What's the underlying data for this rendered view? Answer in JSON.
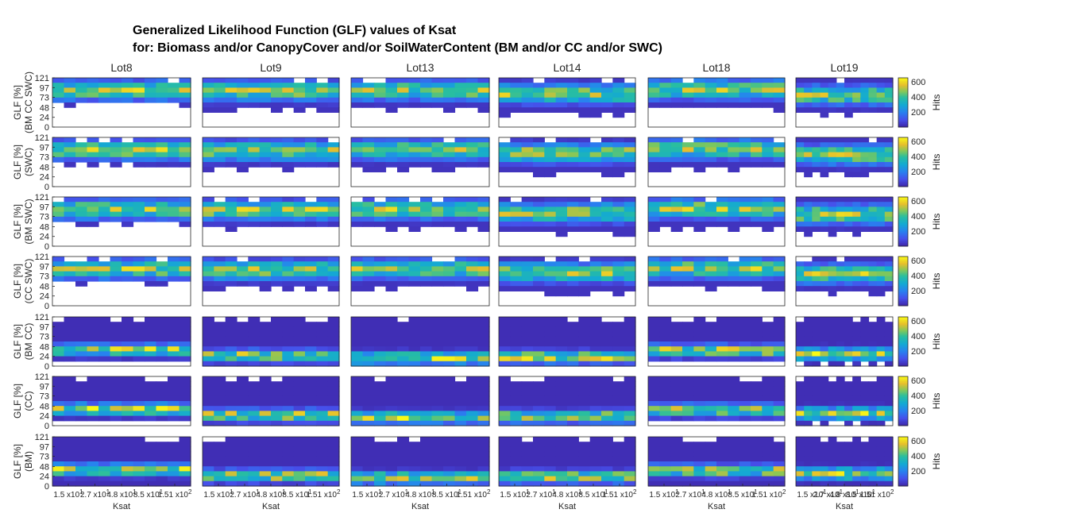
{
  "title": "Generalized Likelihood Function (GLF) values of Ksat",
  "subtitle": "for: Biomass and/or CanopyCover and/or SoilWaterContent (BM and/or CC and/or SWC)",
  "colors": {
    "low": "#3e26a8",
    "mid": "#1fb6c1",
    "high": "#f9fb15",
    "empty": "#ffffff"
  },
  "chart_data": {
    "type": "heatmap",
    "columns": [
      "Lot8",
      "Lot9",
      "Lot13",
      "Lot14",
      "Lot18",
      "Lot19"
    ],
    "rows": [
      {
        "ylabel_1": "GLF [%]",
        "ylabel_2": "(BM CC SWC)"
      },
      {
        "ylabel_1": "GLF [%]",
        "ylabel_2": "(SWC)"
      },
      {
        "ylabel_1": "GLF [%]",
        "ylabel_2": "(BM SWC)"
      },
      {
        "ylabel_1": "GLF [%]",
        "ylabel_2": "(CC SWC)"
      },
      {
        "ylabel_1": "GLF [%]",
        "ylabel_2": "(BM CC)"
      },
      {
        "ylabel_1": "GLF [%]",
        "ylabel_2": "(CC)"
      },
      {
        "ylabel_1": "GLF [%]",
        "ylabel_2": "(BM)"
      }
    ],
    "y_ticks": [
      "0",
      "24",
      "48",
      "73",
      "97",
      "121"
    ],
    "ylim": [
      0,
      121
    ],
    "x_ticks": [
      "1.5 x10",
      "2.7 x10",
      "4.8 x10",
      "8.5 x10",
      "1.51 x10"
    ],
    "x_tick_exponents": [
      "1",
      "1",
      "1",
      "1",
      "2"
    ],
    "xlabel": "Ksat",
    "colorbar": {
      "label": "Hits",
      "ticks": [
        "200",
        "400",
        "600"
      ],
      "range": [
        0,
        650
      ]
    }
  }
}
